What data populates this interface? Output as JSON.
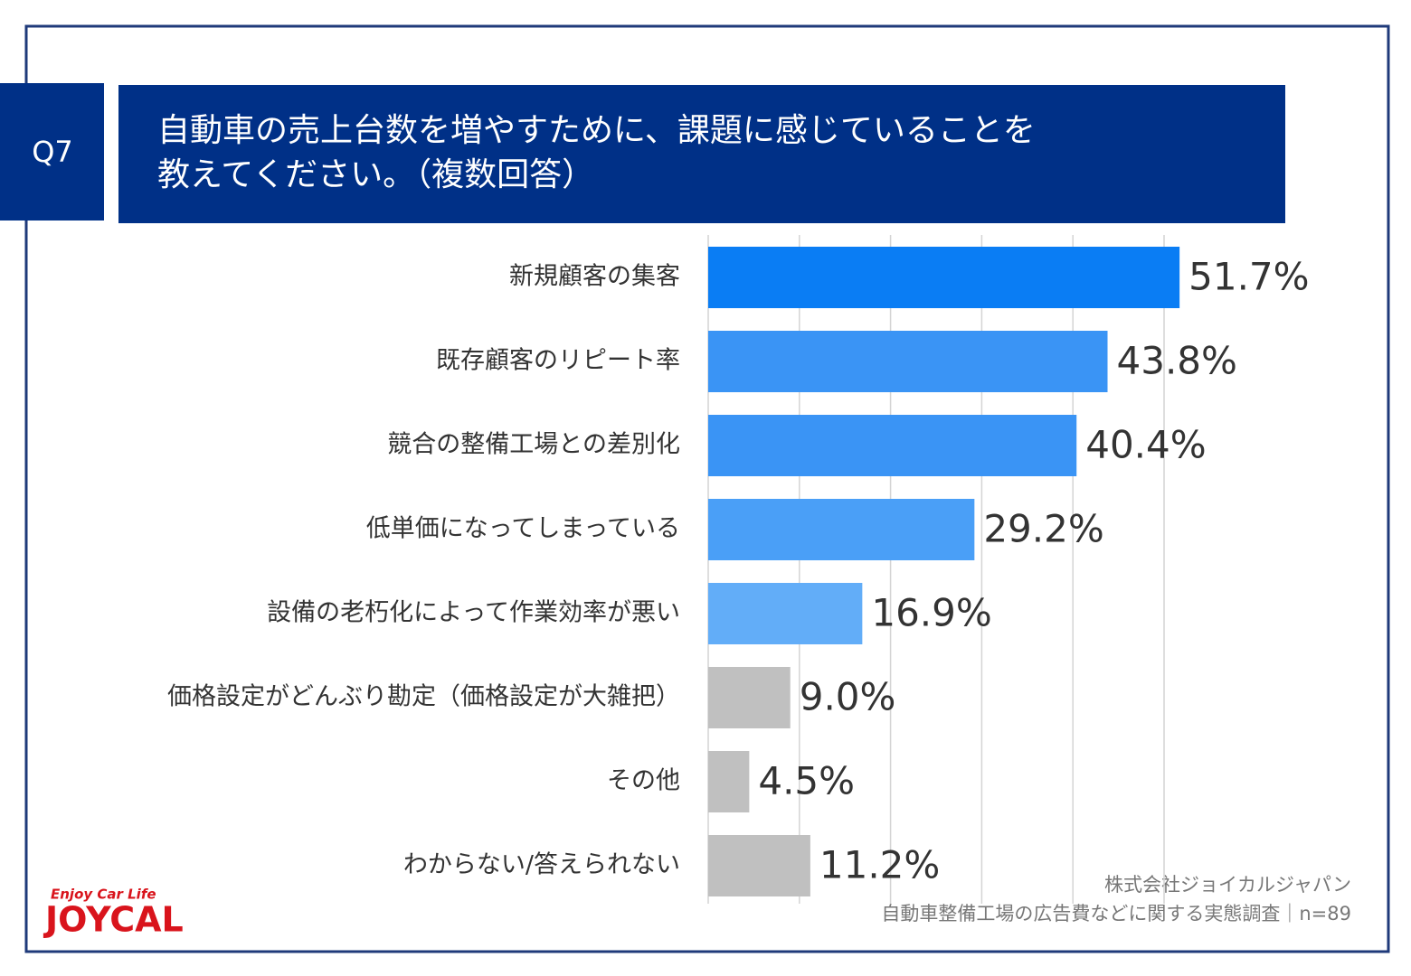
{
  "chart_data": {
    "type": "bar",
    "orientation": "horizontal",
    "question_number": "Q7",
    "title": [
      "自動車の売上台数を増やすために、課題に感じていることを",
      "教えてください。（複数回答）"
    ],
    "categories": [
      "新規顧客の集客",
      "既存顧客のリピート率",
      "競合の整備工場との差別化",
      "低単価になってしまっている",
      "設備の老朽化によって作業効率が悪い",
      "価格設定がどんぶり勘定（価格設定が大雑把）",
      "その他",
      "わからない/答えられない"
    ],
    "values": [
      51.7,
      43.8,
      40.4,
      29.2,
      16.9,
      9.0,
      4.5,
      11.2
    ],
    "value_labels": [
      "51.7%",
      "43.8%",
      "40.4%",
      "29.2%",
      "16.9%",
      "9.0%",
      "4.5%",
      "11.2%"
    ],
    "colors": [
      "#0a7df4",
      "#3a94f5",
      "#3a94f5",
      "#4a9ff7",
      "#62adf8",
      "#c0c0c0",
      "#c0c0c0",
      "#c0c0c0"
    ],
    "xlim": [
      0,
      60
    ],
    "xticks": [
      0,
      10,
      20,
      30,
      40,
      50
    ],
    "grid": true,
    "source": [
      "株式会社ジョイカルジャパン",
      "自動車整備工場の広告費などに関する実態調査｜n=89"
    ],
    "logo": {
      "tagline": "Enjoy Car Life",
      "name": "JOYCAL"
    }
  }
}
